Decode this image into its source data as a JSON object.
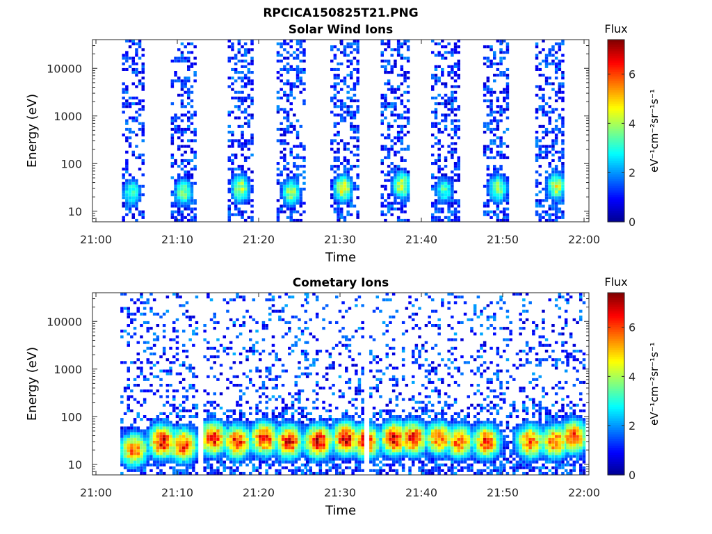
{
  "figure": {
    "filename": "RPCICA150825T21.PNG"
  },
  "colors": {
    "colormap": [
      "#00008f",
      "#0000ff",
      "#0080ff",
      "#00ffff",
      "#80ff80",
      "#ffff00",
      "#ff8000",
      "#ff0000",
      "#800000"
    ],
    "axis": "#262626",
    "background": "#ffffff"
  },
  "chart_data": [
    {
      "type": "heatmap",
      "title": "Solar Wind Ions",
      "xlabel": "Time",
      "ylabel": "Energy (eV)",
      "x_range": [
        "21:00",
        "22:00"
      ],
      "x_ticks": [
        "21:00",
        "21:10",
        "21:20",
        "21:30",
        "21:40",
        "21:50",
        "22:00"
      ],
      "y_scale": "log",
      "y_range": [
        6,
        40000
      ],
      "y_ticks": [
        10,
        100,
        1000,
        10000
      ],
      "y_tick_labels": [
        "10",
        "100",
        "1000",
        "10000"
      ],
      "colorbar": {
        "title": "Flux",
        "unit_label": "eV⁻¹cm⁻²sr⁻¹s⁻¹",
        "range": [
          0,
          7.4
        ],
        "ticks": [
          0,
          2,
          4,
          6
        ],
        "tick_labels": [
          "0",
          "2",
          "4",
          "6"
        ]
      },
      "scan_intervals_minutes": [
        [
          3.2,
          5.8
        ],
        [
          9.2,
          12.2
        ],
        [
          16.2,
          19.2
        ],
        [
          22.2,
          25.6
        ],
        [
          28.8,
          32.2
        ],
        [
          35.0,
          38.2
        ],
        [
          41.2,
          44.6
        ],
        [
          47.6,
          50.4
        ],
        [
          54.0,
          57.2
        ]
      ],
      "peak_times_minutes": [
        4.2,
        10.6,
        17.6,
        23.8,
        30.2,
        37.4,
        42.6,
        49.2,
        56.4
      ],
      "peak_energies_eV": [
        25,
        25,
        30,
        25,
        30,
        35,
        28,
        30,
        33
      ],
      "peak_flux": [
        3.5,
        4.0,
        4.5,
        4.2,
        4.8,
        4.6,
        3.4,
        4.2,
        4.6
      ],
      "background_flux_range": [
        0.5,
        2.0
      ]
    },
    {
      "type": "heatmap",
      "title": "Cometary Ions",
      "xlabel": "Time",
      "ylabel": "Energy (eV)",
      "x_range": [
        "21:00",
        "22:00"
      ],
      "x_ticks": [
        "21:00",
        "21:10",
        "21:20",
        "21:30",
        "21:40",
        "21:50",
        "22:00"
      ],
      "y_scale": "log",
      "y_range": [
        6,
        40000
      ],
      "y_ticks": [
        10,
        100,
        1000,
        10000
      ],
      "y_tick_labels": [
        "10",
        "100",
        "1000",
        "10000"
      ],
      "colorbar": {
        "title": "Flux",
        "unit_label": "eV⁻¹cm⁻²sr⁻¹s⁻¹",
        "range": [
          0,
          7.4
        ],
        "ticks": [
          0,
          2,
          4,
          6
        ],
        "tick_labels": [
          "0",
          "2",
          "4",
          "6"
        ]
      },
      "scan_intervals_minutes": [
        [
          3.0,
          6.0
        ],
        [
          6.2,
          12.4
        ],
        [
          13.2,
          19.4
        ],
        [
          19.6,
          25.8
        ],
        [
          25.8,
          32.6
        ],
        [
          33.6,
          39.4
        ],
        [
          39.6,
          45.4
        ],
        [
          45.6,
          51.2
        ],
        [
          51.6,
          57.6
        ],
        [
          57.8,
          59.9
        ]
      ],
      "peak_times_minutes": [
        4.5,
        8.0,
        10.5,
        14.2,
        17.2,
        20.5,
        23.5,
        27.2,
        30.5,
        33.0,
        36.5,
        38.8,
        42.0,
        44.5,
        47.8,
        53.2,
        56.2,
        58.5
      ],
      "peak_energies_eV": [
        20,
        30,
        25,
        35,
        30,
        35,
        30,
        30,
        35,
        30,
        35,
        35,
        35,
        30,
        30,
        30,
        30,
        38
      ],
      "peak_flux": [
        6.0,
        7.0,
        6.6,
        6.8,
        6.6,
        6.8,
        6.8,
        7.2,
        7.0,
        7.0,
        7.0,
        6.8,
        6.2,
        6.2,
        6.4,
        6.2,
        6.2,
        6.4
      ],
      "background_flux_range": [
        0.5,
        2.2
      ]
    }
  ]
}
